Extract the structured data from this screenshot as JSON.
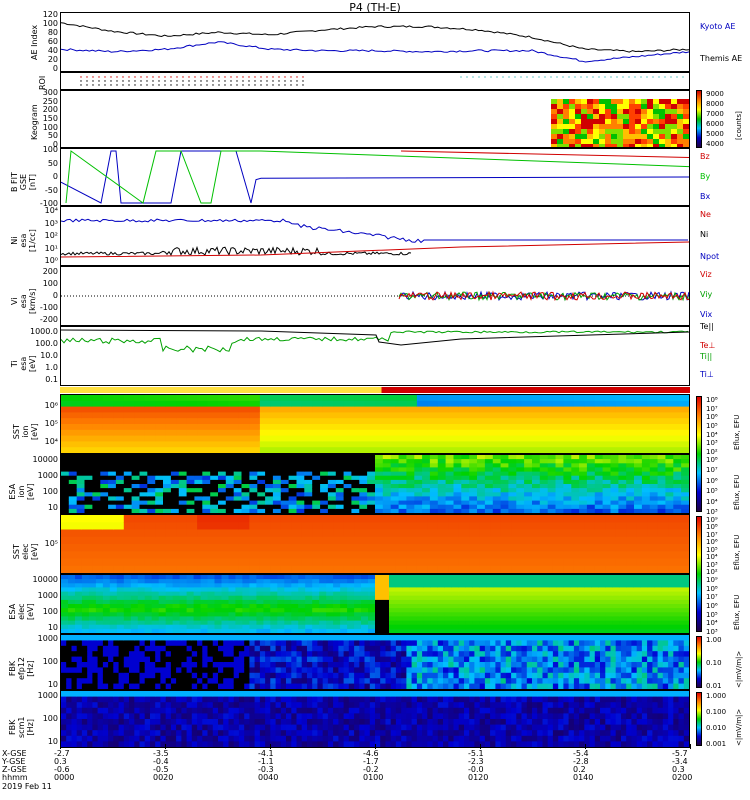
{
  "title": "P4 (TH-E)",
  "chart_data": [
    {
      "type": "line",
      "ylabel": "AE Index",
      "ticks": [
        "120",
        "100",
        "80",
        "60",
        "40",
        "20",
        "0"
      ],
      "ylim": [
        0,
        120
      ],
      "series": [
        {
          "name": "Kyoto AE",
          "color": "#000000"
        },
        {
          "name": "Themis AE",
          "color": "#0000c0"
        }
      ],
      "x": [
        0,
        10,
        20,
        30,
        40,
        50,
        60,
        70,
        80,
        90,
        100,
        110,
        120
      ],
      "kyoto": [
        100,
        82,
        72,
        80,
        75,
        85,
        92,
        92,
        85,
        70,
        45,
        40,
        45
      ],
      "themis": [
        45,
        40,
        45,
        60,
        45,
        42,
        42,
        40,
        42,
        42,
        20,
        30,
        40
      ]
    },
    {
      "type": "line",
      "ylabel": "ROI"
    },
    {
      "type": "heatmap",
      "ylabel": "Keogram",
      "ticks": [
        "300",
        "250",
        "200",
        "150",
        "100",
        "50",
        "0"
      ],
      "cbar_ticks": [
        "9000",
        "8000",
        "7000",
        "6000",
        "5000",
        "4000"
      ],
      "cbar_label": "[counts]"
    },
    {
      "type": "line",
      "ylabel": "B FIT\nGSE\n[nT]",
      "ticks": [
        "100",
        "50",
        "0",
        "-50",
        "-100"
      ],
      "ylim": [
        -100,
        100
      ],
      "series": [
        {
          "name": "Bz",
          "color": "#d00000"
        },
        {
          "name": "By",
          "color": "#00c000"
        },
        {
          "name": "Bx",
          "color": "#0000c0"
        }
      ]
    },
    {
      "type": "line",
      "ylabel": "Ni\nesa\n[1/cc]",
      "ticks": [
        "10⁴",
        "10³",
        "10²",
        "10¹",
        "10⁰"
      ],
      "series": [
        {
          "name": "Ne",
          "color": "#d00000"
        },
        {
          "name": "Ni",
          "color": "#000000"
        },
        {
          "name": "Npot",
          "color": "#0000c0"
        }
      ]
    },
    {
      "type": "line",
      "ylabel": "Vi\nesa\n[km/s]",
      "ticks": [
        "200",
        "100",
        "0",
        "-100",
        "-200"
      ],
      "ylim": [
        -250,
        250
      ],
      "series": [
        {
          "name": "Viz",
          "color": "#d00000"
        },
        {
          "name": "Viy",
          "color": "#00a000"
        },
        {
          "name": "Vix",
          "color": "#0000c0"
        }
      ]
    },
    {
      "type": "line",
      "ylabel": "Ti\nesa\n[eV]",
      "ticks": [
        "1000.0",
        "100.0",
        "10.0",
        "1.0",
        "0.1"
      ],
      "series": [
        {
          "name": "Te||",
          "color": "#000000"
        },
        {
          "name": "Te⊥",
          "color": "#d00000"
        },
        {
          "name": "Ti||",
          "color": "#00a000"
        },
        {
          "name": "Ti⊥",
          "color": "#0000c0"
        }
      ]
    },
    {
      "type": "heatmap",
      "ylabel": "SST\nion\n[eV]",
      "ticks": [
        "10⁶",
        "10⁵",
        "10⁴"
      ],
      "cbar_ticks": [
        "10⁸",
        "10⁷",
        "10⁶",
        "10⁵",
        "10⁴",
        "10³",
        "10²"
      ],
      "cbar_label": "Eflux, EFU"
    },
    {
      "type": "heatmap",
      "ylabel": "ESA\nion\n[eV]",
      "ticks": [
        "10000",
        "1000",
        "100",
        "10"
      ],
      "cbar_ticks": [
        "10⁸",
        "10⁷",
        "10⁶",
        "10⁵",
        "10⁴",
        "10³"
      ],
      "cbar_label": "Eflux, EFU"
    },
    {
      "type": "heatmap",
      "ylabel": "SST\nelec\n[eV]",
      "ticks": [
        "10⁵"
      ],
      "cbar_ticks": [
        "10⁹",
        "10⁸",
        "10⁷",
        "10⁶",
        "10⁵",
        "10⁴",
        "10³",
        "10²"
      ],
      "cbar_label": "Eflux, EFU"
    },
    {
      "type": "heatmap",
      "ylabel": "ESA\nelec\n[eV]",
      "ticks": [
        "10000",
        "1000",
        "100",
        "10"
      ],
      "cbar_ticks": [
        "10⁹",
        "10⁸",
        "10⁷",
        "10⁶",
        "10⁵",
        "10⁴",
        "10³"
      ],
      "cbar_label": "Eflux, EFU"
    },
    {
      "type": "heatmap",
      "ylabel": "FBK\nefp12\n[Hz]",
      "ticks": [
        "1000",
        "100",
        "10"
      ],
      "cbar_ticks": [
        "1.00",
        "0.10",
        "0.01"
      ],
      "cbar_label": "<|mV/m|>"
    },
    {
      "type": "heatmap",
      "ylabel": "FBK\nscm1\n[Hz]",
      "ticks": [
        "1000",
        "100",
        "10"
      ],
      "cbar_ticks": [
        "1.000",
        "0.100",
        "0.010",
        "0.001"
      ],
      "cbar_label": "<|mV/m|>"
    }
  ],
  "xaxis": {
    "row_labels": [
      "X-GSE",
      "Y-GSE",
      "Z-GSE",
      "hhmm",
      "2019 Feb 11"
    ],
    "columns": [
      {
        "v": [
          "-2.7",
          "0.3",
          "-0.6",
          "0000"
        ]
      },
      {
        "v": [
          "-3.5",
          "-0.4",
          "-0.5",
          "0020"
        ]
      },
      {
        "v": [
          "-4.1",
          "-1.1",
          "-0.3",
          "0040"
        ]
      },
      {
        "v": [
          "-4.6",
          "-1.7",
          "-0.2",
          "0100"
        ]
      },
      {
        "v": [
          "-5.1",
          "-2.3",
          "-0.0",
          "0120"
        ]
      },
      {
        "v": [
          "-5.4",
          "-2.8",
          "0.2",
          "0140"
        ]
      },
      {
        "v": [
          "-5.7",
          "-3.4",
          "0.3",
          "0200"
        ]
      }
    ]
  }
}
